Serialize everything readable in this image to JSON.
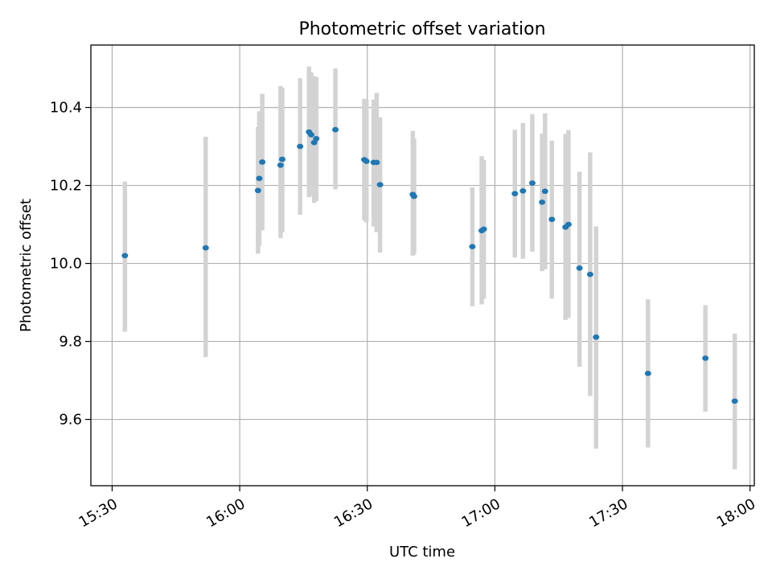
{
  "chart_data": {
    "type": "scatter",
    "title": "Photometric offset variation",
    "xlabel": "UTC time",
    "ylabel": "Photometric offset",
    "x_is_time": true,
    "xlim": [
      "15:25",
      "18:01"
    ],
    "ylim": [
      9.43,
      10.56
    ],
    "xticks": [
      "15:30",
      "16:00",
      "16:30",
      "17:00",
      "17:30",
      "18:00"
    ],
    "yticks": [
      9.6,
      9.8,
      10.0,
      10.2,
      10.4
    ],
    "grid": true,
    "legend": "none",
    "colors": {
      "marker": "#1f77b4",
      "errorbar": "#d3d3d3",
      "grid": "#b0b0b0"
    },
    "series": [
      {
        "points": [
          {
            "x": "15:33",
            "y": 10.02,
            "lo": 9.825,
            "hi": 10.21
          },
          {
            "x": "15:52",
            "y": 10.04,
            "lo": 9.76,
            "hi": 10.325
          },
          {
            "x": "16:04.3",
            "y": 10.187,
            "lo": 10.025,
            "hi": 10.35
          },
          {
            "x": "16:04.6",
            "y": 10.218,
            "lo": 10.045,
            "hi": 10.39
          },
          {
            "x": "16:05.3",
            "y": 10.26,
            "lo": 10.085,
            "hi": 10.435
          },
          {
            "x": "16:09.6",
            "y": 10.252,
            "lo": 10.065,
            "hi": 10.455
          },
          {
            "x": "16:10",
            "y": 10.267,
            "lo": 10.08,
            "hi": 10.45
          },
          {
            "x": "16:14.2",
            "y": 10.3,
            "lo": 10.125,
            "hi": 10.475
          },
          {
            "x": "16:16.3",
            "y": 10.337,
            "lo": 10.17,
            "hi": 10.505
          },
          {
            "x": "16:16.8",
            "y": 10.33,
            "lo": 10.175,
            "hi": 10.49
          },
          {
            "x": "16:17.5",
            "y": 10.31,
            "lo": 10.155,
            "hi": 10.48
          },
          {
            "x": "16:18",
            "y": 10.32,
            "lo": 10.16,
            "hi": 10.478
          },
          {
            "x": "16:22.5",
            "y": 10.343,
            "lo": 10.19,
            "hi": 10.5
          },
          {
            "x": "16:29.3",
            "y": 10.266,
            "lo": 10.11,
            "hi": 10.422
          },
          {
            "x": "16:29.8",
            "y": 10.262,
            "lo": 10.105,
            "hi": 10.42
          },
          {
            "x": "16:31.5",
            "y": 10.259,
            "lo": 10.095,
            "hi": 10.42
          },
          {
            "x": "16:32.2",
            "y": 10.259,
            "lo": 10.08,
            "hi": 10.437
          },
          {
            "x": "16:33",
            "y": 10.202,
            "lo": 10.028,
            "hi": 10.375
          },
          {
            "x": "16:40.7",
            "y": 10.177,
            "lo": 10.02,
            "hi": 10.34
          },
          {
            "x": "16:41",
            "y": 10.172,
            "lo": 10.023,
            "hi": 10.32
          },
          {
            "x": "16:54.7",
            "y": 10.043,
            "lo": 9.89,
            "hi": 10.195
          },
          {
            "x": "16:56.9",
            "y": 10.084,
            "lo": 9.895,
            "hi": 10.275
          },
          {
            "x": "16:57.4",
            "y": 10.088,
            "lo": 9.91,
            "hi": 10.265
          },
          {
            "x": "17:04.7",
            "y": 10.179,
            "lo": 10.015,
            "hi": 10.343
          },
          {
            "x": "17:06.6",
            "y": 10.186,
            "lo": 10.012,
            "hi": 10.36
          },
          {
            "x": "17:08.8",
            "y": 10.206,
            "lo": 10.03,
            "hi": 10.383
          },
          {
            "x": "17:11.1",
            "y": 10.157,
            "lo": 9.98,
            "hi": 10.333
          },
          {
            "x": "17:11.8",
            "y": 10.185,
            "lo": 9.985,
            "hi": 10.385
          },
          {
            "x": "17:13.4",
            "y": 10.113,
            "lo": 9.91,
            "hi": 10.315
          },
          {
            "x": "17:16.6",
            "y": 10.093,
            "lo": 9.855,
            "hi": 10.332
          },
          {
            "x": "17:17.3",
            "y": 10.1,
            "lo": 9.86,
            "hi": 10.342
          },
          {
            "x": "17:19.9",
            "y": 9.988,
            "lo": 9.735,
            "hi": 10.235
          },
          {
            "x": "17:22.4",
            "y": 9.972,
            "lo": 9.66,
            "hi": 10.285
          },
          {
            "x": "17:23.8",
            "y": 9.811,
            "lo": 9.525,
            "hi": 10.095
          },
          {
            "x": "17:36",
            "y": 9.718,
            "lo": 9.528,
            "hi": 9.908
          },
          {
            "x": "17:49.5",
            "y": 9.757,
            "lo": 9.62,
            "hi": 9.893
          },
          {
            "x": "17:56.4",
            "y": 9.647,
            "lo": 9.472,
            "hi": 9.82
          }
        ]
      }
    ]
  }
}
